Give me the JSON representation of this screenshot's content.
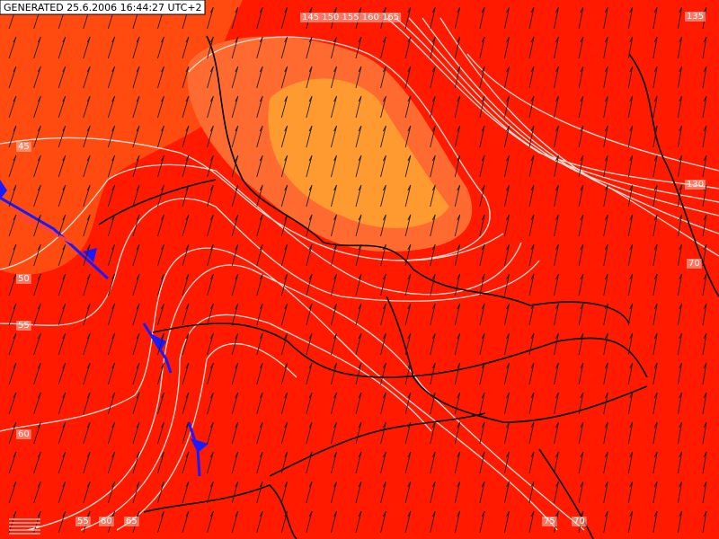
{
  "header": {
    "generated": "GENERATED 25.6.2006 16:44:27 UTC+2"
  },
  "contour_labels": [
    "45",
    "50",
    "55",
    "60",
    "55",
    "60",
    "65",
    "75",
    "70",
    "135",
    "130",
    "70",
    "145 150 155 160 165"
  ]
}
